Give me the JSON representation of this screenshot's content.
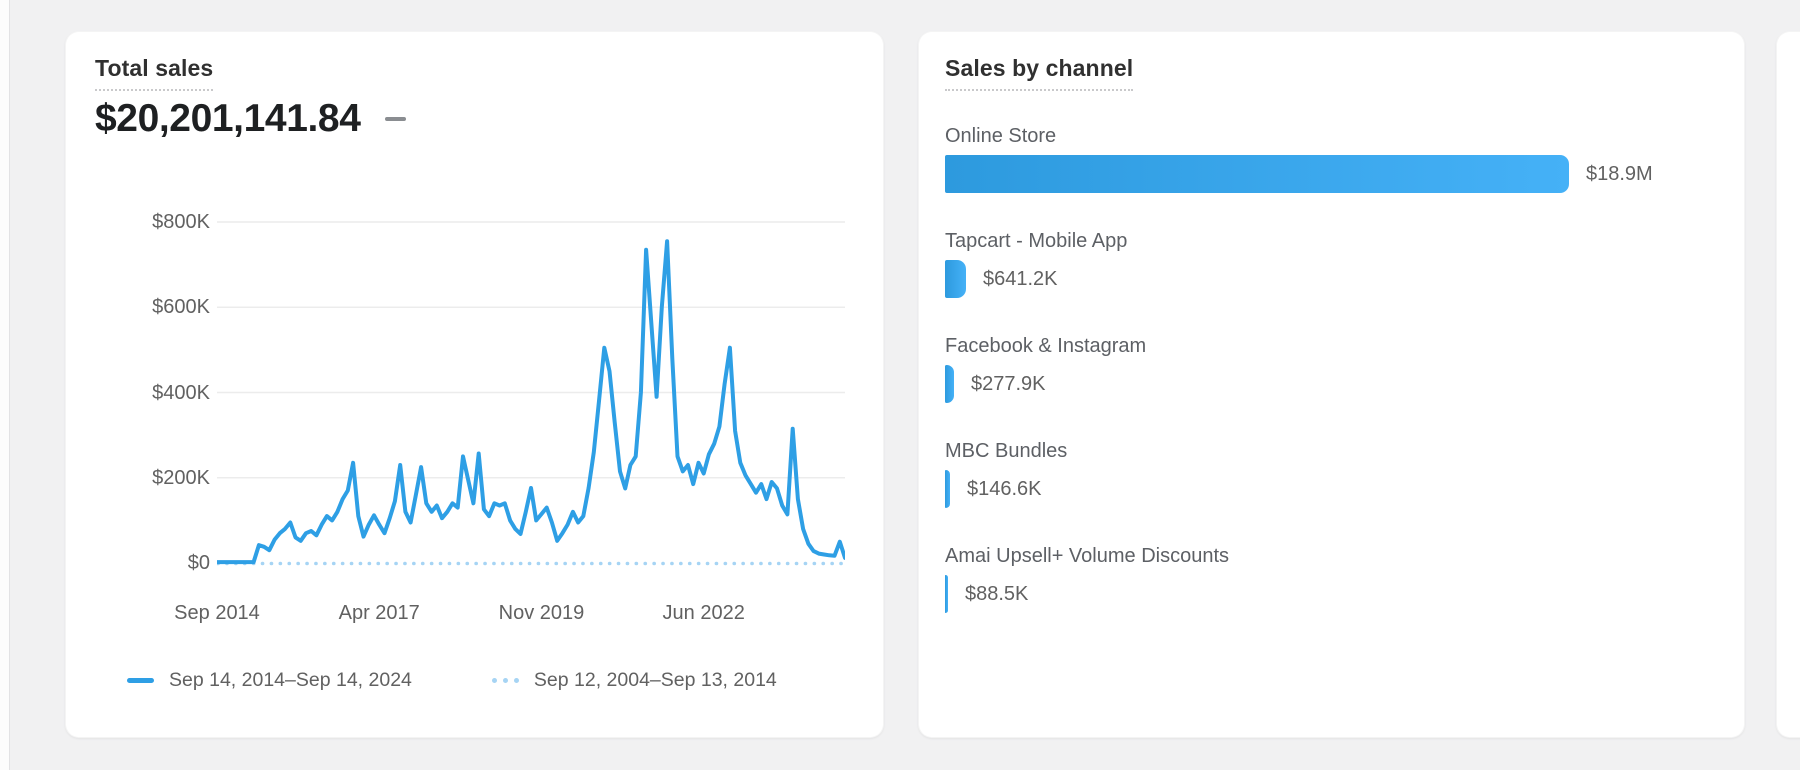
{
  "page_background": "#f1f1f2",
  "accent_colors": {
    "line_blue": "#2E9FE5",
    "comparison_dotted_blue": "#A6D4F4",
    "bar_gradient_left": "#2D9ADE",
    "bar_gradient_right": "#45B1F7",
    "gridline": "#ececec",
    "secondary_text": "#616161"
  },
  "chart_data": [
    {
      "type": "line",
      "title": "Total sales",
      "current_total_display": "$20,201,141.84",
      "change_indicator": "—",
      "ylabel": "",
      "xlabel": "",
      "ylim_k": [
        0,
        800
      ],
      "grid": "horizontal only",
      "legend_position": "bottom-left",
      "y_tick_labels": [
        "$800K",
        "$600K",
        "$400K",
        "$200K",
        "$0"
      ],
      "y_tick_values_k": [
        800,
        600,
        400,
        200,
        0
      ],
      "x_tick_labels": [
        "Sep 2014",
        "Apr 2017",
        "Nov 2019",
        "Jun 2022"
      ],
      "x_tick_months": [
        0,
        31,
        62,
        93
      ],
      "x_unit": "months since Sep 2014 (0 = Sep 2014, 120 = Sep 2024)",
      "y_unit": "USD thousands",
      "series": [
        {
          "name": "Sep 14, 2014–Sep 14, 2024",
          "style": "solid",
          "color": "#2E9FE5",
          "values_k": [
            2,
            2,
            2,
            2,
            2,
            2,
            2,
            2,
            42,
            38,
            30,
            55,
            70,
            80,
            95,
            60,
            52,
            70,
            75,
            65,
            90,
            110,
            100,
            120,
            150,
            170,
            235,
            110,
            62,
            90,
            112,
            90,
            70,
            105,
            145,
            230,
            120,
            95,
            160,
            225,
            140,
            120,
            135,
            105,
            120,
            140,
            130,
            250,
            195,
            140,
            257,
            126,
            110,
            140,
            135,
            140,
            100,
            80,
            68,
            120,
            176,
            100,
            115,
            130,
            95,
            52,
            70,
            90,
            120,
            95,
            110,
            176,
            260,
            380,
            505,
            450,
            330,
            215,
            175,
            230,
            250,
            400,
            735,
            560,
            390,
            600,
            755,
            480,
            250,
            215,
            230,
            185,
            235,
            210,
            255,
            280,
            320,
            420,
            505,
            310,
            235,
            205,
            185,
            165,
            185,
            150,
            190,
            175,
            135,
            114,
            315,
            150,
            80,
            45,
            28,
            22,
            20,
            18,
            17,
            50,
            12
          ]
        },
        {
          "name": "Sep 12, 2004–Sep 13, 2014",
          "style": "dotted",
          "color": "#A6D4F4",
          "values_k_constant": 0,
          "note": "flat dotted baseline at $0 across the full x range"
        }
      ]
    },
    {
      "type": "bar",
      "title": "Sales by channel",
      "orientation": "horizontal",
      "value_unit": "USD thousands",
      "categories": [
        "Online Store",
        "Tapcart - Mobile App",
        "Facebook & Instagram",
        "MBC Bundles",
        "Amai Upsell+ Volume Discounts"
      ],
      "values_k": [
        18900,
        641.2,
        277.9,
        146.6,
        88.5
      ],
      "display_values": [
        "$18.9M",
        "$641.2K",
        "$277.9K",
        "$146.6K",
        "$88.5K"
      ]
    }
  ]
}
